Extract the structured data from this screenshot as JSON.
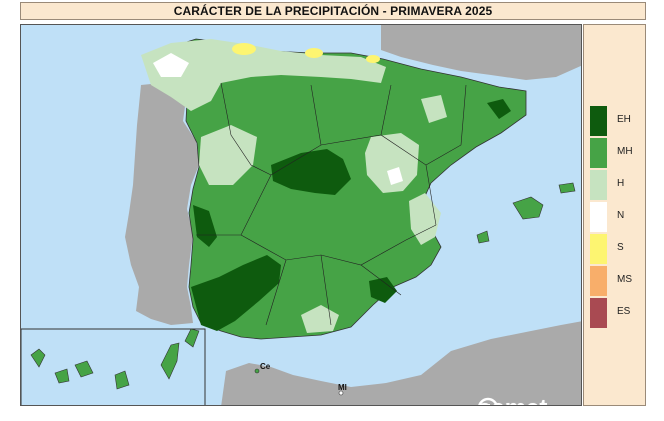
{
  "title": "CARÁCTER DE LA PRECIPITACIÓN - PRIMAVERA 2025",
  "legend": [
    {
      "code": "EH",
      "color": "#0e5b0e"
    },
    {
      "code": "MH",
      "color": "#46a346"
    },
    {
      "code": "H",
      "color": "#c6e3c0"
    },
    {
      "code": "N",
      "color": "#ffffff"
    },
    {
      "code": "S",
      "color": "#fdf571"
    },
    {
      "code": "MS",
      "color": "#f8ae6a"
    },
    {
      "code": "ES",
      "color": "#a94a52"
    }
  ],
  "map": {
    "city_labels": {
      "ceuta": "Ce",
      "melilla": "Ml"
    },
    "sea_color": "#bfe0f7",
    "land_other_color": "#aaaaaa"
  },
  "logo_text": "aemet"
}
